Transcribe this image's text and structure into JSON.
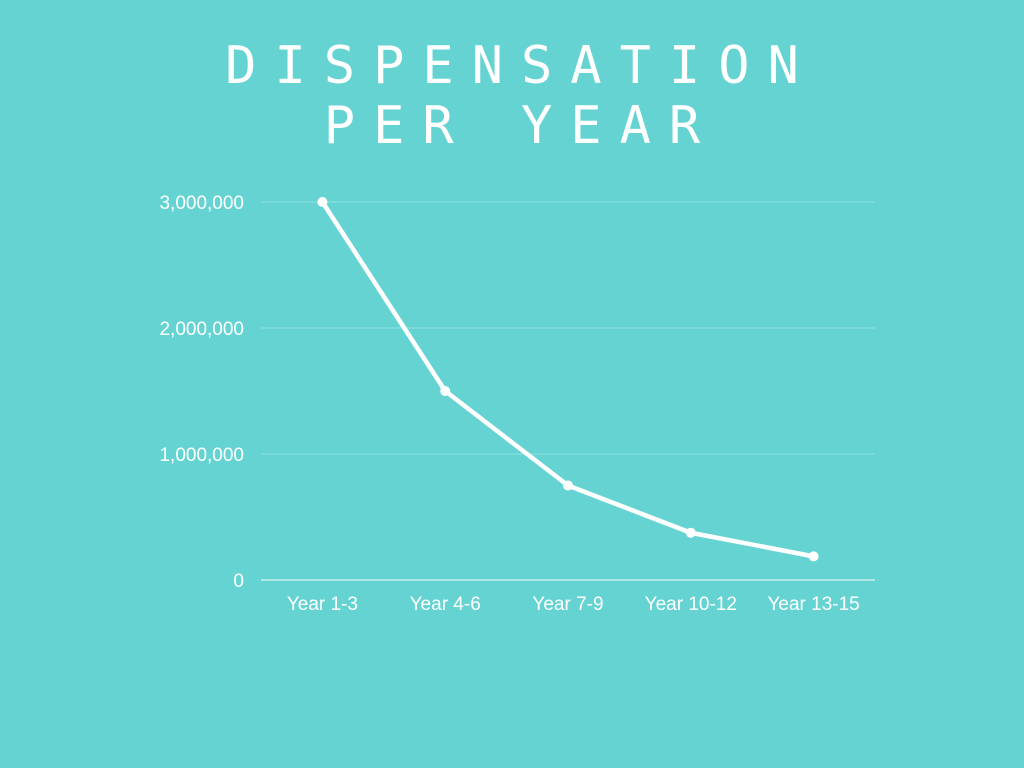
{
  "chart_data": {
    "type": "line",
    "title_lines": [
      "DISPENSATION",
      "PER YEAR"
    ],
    "xlabel": "",
    "ylabel": "",
    "categories": [
      "Year 1-3",
      "Year 4-6",
      "Year 7-9",
      "Year 10-12",
      "Year 13-15"
    ],
    "series": [
      {
        "values": [
          3000000,
          1500000,
          750000,
          375000,
          187500
        ]
      }
    ],
    "yticks": [
      0,
      1000000,
      2000000,
      3000000
    ],
    "ytick_labels": [
      "0",
      "1,000,000",
      "2,000,000",
      "3,000,000"
    ],
    "ylim": [
      0,
      3000000
    ],
    "grid": true,
    "colors": {
      "background": "#66d3d3",
      "line": "#ffffff",
      "grid": "#8fe0e0"
    }
  }
}
